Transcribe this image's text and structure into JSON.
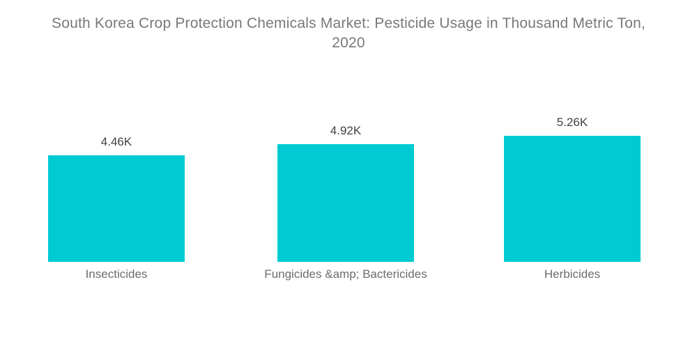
{
  "title_lines": [
    "South Korea Crop Protection Chemicals Market: Pesticide Usage in Thousand Metric Ton,",
    "2020"
  ],
  "chart_data": {
    "type": "bar",
    "title": "South Korea Crop Protection Chemicals Market: Pesticide Usage in Thousand Metric Ton, 2020",
    "categories": [
      "Insecticides",
      "Fungicides &amp; Bactericides",
      "Herbicides"
    ],
    "values": [
      4460,
      4920,
      5260
    ],
    "value_labels": [
      "4.46K",
      "4.92K",
      "5.26K"
    ],
    "xlabel": "",
    "ylabel": "",
    "ylim": [
      0,
      5600
    ],
    "grid": false,
    "legend": "none",
    "bar_color": "#00cbd2",
    "title_color": "#77787b",
    "value_label_color": "#414042",
    "category_label_color": "#6b6c6e",
    "background_color": "#ffffff"
  }
}
